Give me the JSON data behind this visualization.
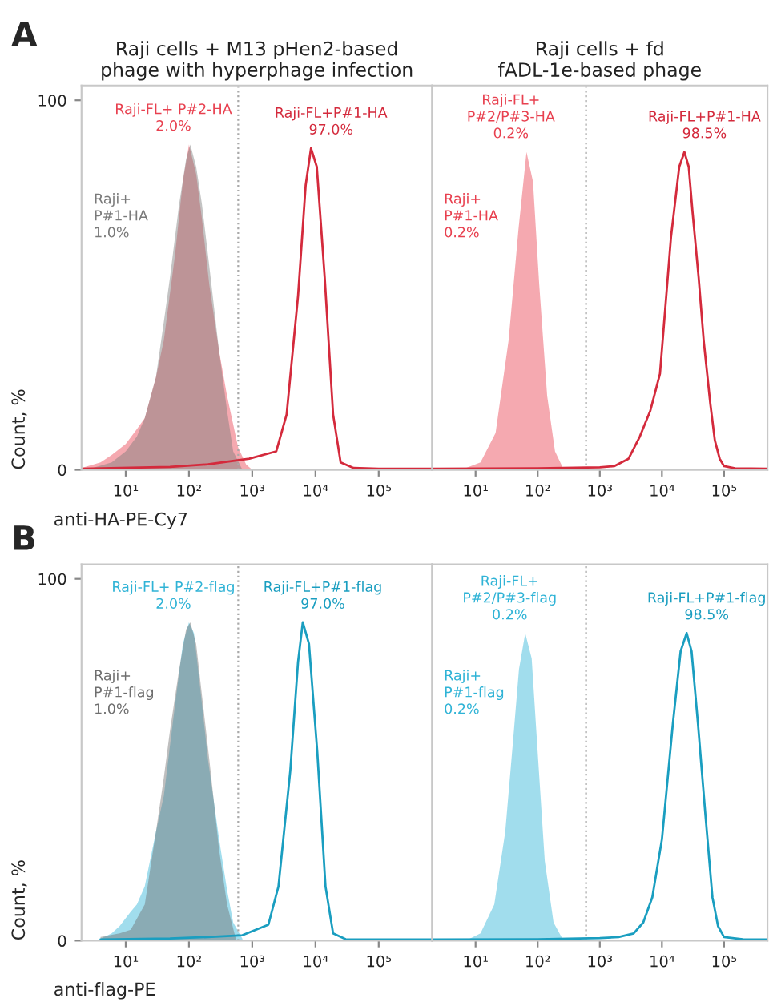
{
  "chart_data": [
    {
      "type": "area",
      "title": "Raji cells + M13 pHen2-based\nphage with hyperphage infection",
      "ylabel": "Count, %",
      "xlabel": "anti-HA-PE-Cy7",
      "annotations": [
        "A"
      ],
      "log": "x",
      "xlim": [
        2,
        700000
      ],
      "xticks": [
        {
          "value": 10,
          "label": "10¹"
        },
        {
          "value": 100,
          "label": "10²"
        },
        {
          "value": 1000,
          "label": "10³"
        },
        {
          "value": 10000,
          "label": "10⁴"
        },
        {
          "value": 100000,
          "label": "10⁵"
        }
      ],
      "ylim": [
        0,
        104
      ],
      "yticks": [
        0,
        100
      ],
      "ref_lines": [
        {
          "axis": "x",
          "value": 600,
          "color": "#aaaaaa",
          "line_style": "dotted"
        }
      ],
      "series": [
        {
          "name": "Raji-FL+ P#2-HA\n2.0%",
          "color": "#e8404f",
          "x": [
            2,
            4,
            6,
            10,
            15,
            20,
            30,
            40,
            60,
            80,
            100,
            130,
            160,
            210,
            300,
            400,
            600,
            800,
            1000
          ],
          "values": [
            0.5,
            2,
            4,
            7,
            11,
            14,
            25,
            35,
            58,
            78,
            88,
            80,
            68,
            50,
            32,
            20,
            6,
            1.5,
            0
          ]
        },
        {
          "name": "Raji+\nP#1-HA\n1.0%",
          "color": "#7a7a7a",
          "x": [
            3,
            6,
            10,
            15,
            20,
            30,
            40,
            50,
            70,
            90,
            105,
            130,
            160,
            210,
            300,
            400,
            500,
            700
          ],
          "values": [
            0.5,
            2,
            5,
            9,
            14,
            25,
            40,
            52,
            72,
            84,
            88,
            82,
            72,
            55,
            32,
            16,
            5,
            0
          ]
        },
        {
          "name": "Raji-FL+P#1-HA\n97.0%",
          "type": "line",
          "color": "#d42a3c",
          "x": [
            2,
            50,
            200,
            900,
            2400,
            3500,
            5300,
            7000,
            8500,
            10500,
            14000,
            19000,
            25000,
            40000,
            100000,
            700000
          ],
          "values": [
            0.3,
            0.8,
            1.5,
            3,
            5,
            15,
            47,
            77,
            87,
            82,
            52,
            15,
            2,
            0.5,
            0.3,
            0.3
          ]
        }
      ]
    },
    {
      "type": "area",
      "title": "Raji cells + fd\nfADL-1e-based phage",
      "log": "x",
      "tick_labels": "x",
      "xlim": [
        2,
        500000
      ],
      "xticks": [
        {
          "value": 10,
          "label": "10¹"
        },
        {
          "value": 100,
          "label": "10²"
        },
        {
          "value": 1000,
          "label": "10³"
        },
        {
          "value": 10000,
          "label": "10⁴"
        },
        {
          "value": 100000,
          "label": "10⁵"
        }
      ],
      "ylim": [
        0,
        104
      ],
      "ref_lines": [
        {
          "axis": "x",
          "value": 600,
          "color": "#aaaaaa",
          "line_style": "dotted"
        }
      ],
      "series": [
        {
          "name": "Raji-FL+\nP#2/P#3-HA\n0.2%",
          "color": "#e8404f",
          "x": [
            4,
            7,
            12,
            21,
            34,
            49,
            66,
            84,
            106,
            142,
            190,
            255,
            350
          ],
          "values": [
            0,
            0.5,
            2,
            10,
            35,
            65,
            86,
            78,
            50,
            20,
            5,
            0.5,
            0
          ]
        },
        {
          "name": "Raji+\nP#1-HA\n0.2%",
          "color": "#e8404f"
        },
        {
          "name": "Raji-FL+P#1-HA\n98.5%",
          "type": "line",
          "color": "#d42a3c",
          "x": [
            2,
            100,
            1000,
            1700,
            2900,
            4400,
            6500,
            9300,
            14000,
            19000,
            23000,
            27000,
            31000,
            39000,
            47000,
            60000,
            71000,
            85000,
            100000,
            150000,
            500000
          ],
          "values": [
            0.3,
            0.4,
            0.7,
            1,
            3,
            9,
            16,
            26,
            63,
            82,
            86,
            82,
            70,
            52,
            35,
            18,
            8,
            3,
            1,
            0.4,
            0.3
          ]
        }
      ]
    },
    {
      "type": "area",
      "ylabel": "Count, %",
      "xlabel": "anti-flag-PE",
      "annotations": [
        "B"
      ],
      "log": "x",
      "xlim": [
        2,
        700000
      ],
      "xticks": [
        {
          "value": 10,
          "label": "10¹"
        },
        {
          "value": 100,
          "label": "10²"
        },
        {
          "value": 1000,
          "label": "10³"
        },
        {
          "value": 10000,
          "label": "10⁴"
        },
        {
          "value": 100000,
          "label": "10⁵"
        }
      ],
      "ylim": [
        0,
        104
      ],
      "yticks": [
        0,
        100
      ],
      "ref_lines": [
        {
          "axis": "x",
          "value": 600,
          "color": "#aaaaaa",
          "line_style": "dotted"
        }
      ],
      "series": [
        {
          "name": "Raji-FL+ P#2-flag\n2.0%",
          "color": "#2fb3d6",
          "x": [
            4,
            6,
            8,
            12,
            15,
            20,
            30,
            40,
            60,
            80,
            100,
            120,
            150,
            200,
            300,
            400,
            500,
            700
          ],
          "values": [
            0.5,
            2,
            4,
            8,
            10,
            15,
            30,
            40,
            65,
            82,
            88,
            85,
            70,
            50,
            28,
            14,
            5,
            0.5
          ]
        },
        {
          "name": "Raji+\nP#1-flag\n1.0%",
          "color": "#6e6e6e",
          "x": [
            4,
            8,
            12,
            20,
            30,
            40,
            50,
            70,
            90,
            105,
            130,
            160,
            210,
            300,
            400,
            550
          ],
          "values": [
            1,
            2,
            3,
            10,
            30,
            45,
            58,
            75,
            86,
            88,
            82,
            68,
            50,
            25,
            10,
            0.5
          ]
        },
        {
          "name": "Raji-FL+P#1-flag\n97.0%",
          "type": "line",
          "color": "#1a9ec0",
          "x": [
            4,
            50,
            200,
            700,
            1800,
            2600,
            4000,
            5300,
            6300,
            7900,
            10700,
            14400,
            19000,
            30000,
            100000,
            700000
          ],
          "values": [
            0.3,
            0.6,
            1,
            1.5,
            4.4,
            15,
            47,
            77,
            88,
            82,
            52,
            15,
            2,
            0.4,
            0.3,
            0.3
          ]
        }
      ]
    },
    {
      "type": "area",
      "log": "x",
      "tick_labels": "x",
      "xlim": [
        2,
        500000
      ],
      "xticks": [
        {
          "value": 10,
          "label": "10¹"
        },
        {
          "value": 100,
          "label": "10²"
        },
        {
          "value": 1000,
          "label": "10³"
        },
        {
          "value": 10000,
          "label": "10⁴"
        },
        {
          "value": 100000,
          "label": "10⁵"
        }
      ],
      "ylim": [
        0,
        104
      ],
      "ref_lines": [
        {
          "axis": "x",
          "value": 600,
          "color": "#aaaaaa",
          "line_style": "dotted"
        }
      ],
      "series": [
        {
          "name": "Raji-FL+\nP#2/P#3-flag\n0.2%",
          "color": "#2fb3d6",
          "x": [
            5,
            8,
            12,
            20,
            30,
            40,
            50,
            63,
            80,
            100,
            130,
            180,
            250,
            350
          ],
          "values": [
            0,
            0.5,
            2,
            10,
            30,
            55,
            75,
            85,
            78,
            52,
            22,
            5,
            0.5,
            0
          ]
        },
        {
          "name": "Raji+\nP#1-flag\n0.2%",
          "color": "#2fb3d6"
        },
        {
          "name": "Raji-FL+P#1-flag\n98.5%",
          "type": "line",
          "color": "#1a9ec0",
          "x": [
            2,
            100,
            1000,
            2000,
            3500,
            5000,
            7000,
            10000,
            15000,
            20000,
            25000,
            30000,
            38000,
            50000,
            65000,
            80000,
            100000,
            200000,
            500000
          ],
          "values": [
            0.3,
            0.4,
            0.7,
            1,
            2,
            5,
            12,
            28,
            60,
            80,
            85,
            80,
            60,
            35,
            12,
            4,
            1,
            0.4,
            0.3
          ]
        }
      ]
    }
  ]
}
